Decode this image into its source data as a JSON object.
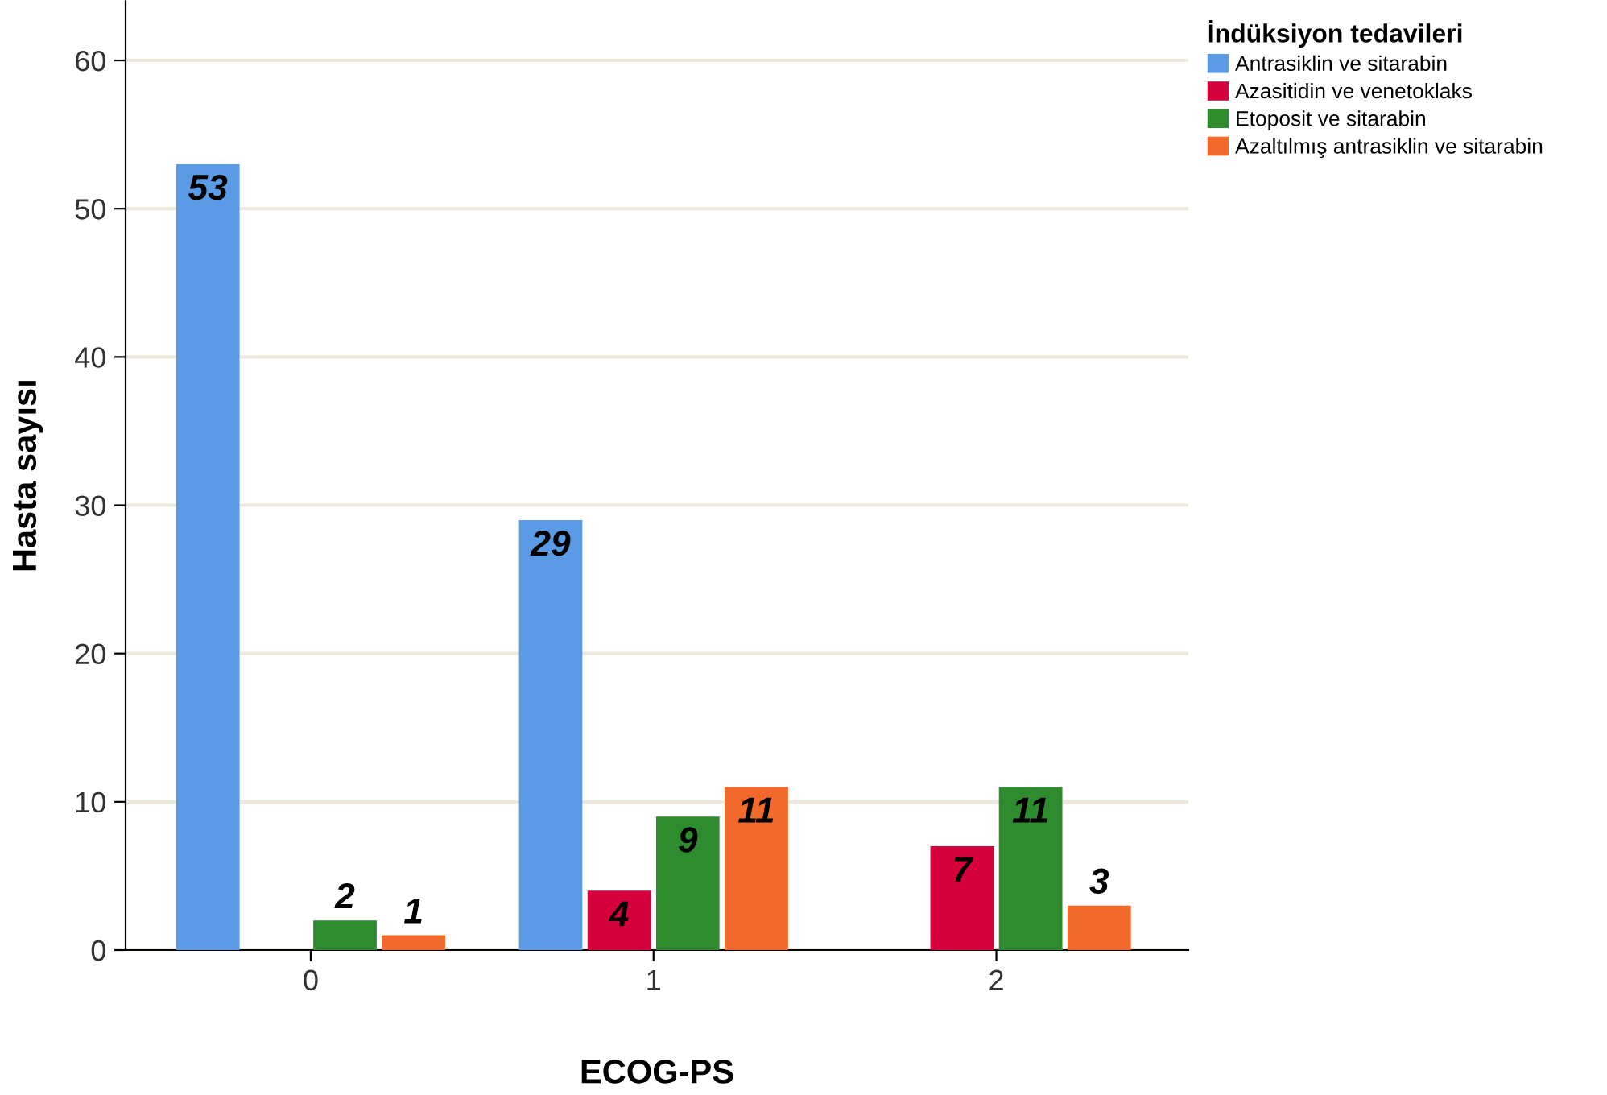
{
  "chart_data": {
    "type": "bar",
    "xlabel": "ECOG-PS",
    "ylabel": "Hasta sayısı",
    "legend_title": "İndüksiyon tedavileri",
    "categories": [
      "0",
      "1",
      "2"
    ],
    "series": [
      {
        "name": "Antrasiklin ve sitarabin",
        "color": "#5b9be6",
        "values": [
          53,
          29,
          0
        ],
        "value_labels": [
          "53",
          "29",
          null
        ]
      },
      {
        "name": "Azasitidin ve venetoklaks",
        "color": "#d6003c",
        "values": [
          0,
          4,
          7
        ],
        "value_labels": [
          null,
          "4",
          "7"
        ]
      },
      {
        "name": "Etoposit ve sitarabin",
        "color": "#2e8b2e",
        "values": [
          2,
          9,
          11
        ],
        "value_labels": [
          "2",
          "9",
          "11"
        ]
      },
      {
        "name": "Azaltılmış antrasiklin ve sitarabin",
        "color": "#f26a2b",
        "values": [
          1,
          11,
          3
        ],
        "value_labels": [
          "1",
          "11",
          "3"
        ]
      }
    ],
    "ylim": [
      0,
      64
    ],
    "yticks": [
      0,
      10,
      20,
      30,
      40,
      50,
      60
    ],
    "grid": "y",
    "legend": "right"
  }
}
